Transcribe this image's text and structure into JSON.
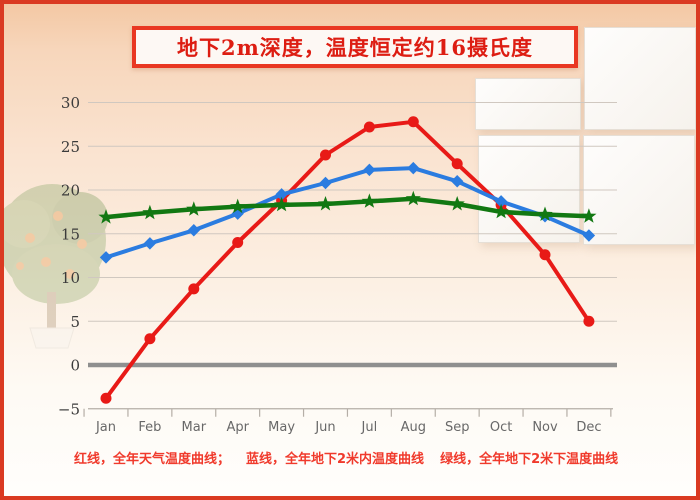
{
  "page": {
    "title": "地下2m深度，温度恒定约16摄氏度"
  },
  "legend": {
    "items": [
      {
        "id": "red",
        "text": "红线，全年天气温度曲线；"
      },
      {
        "id": "blue",
        "text": "蓝线，全年地下2米内温度曲线"
      },
      {
        "id": "green",
        "text": "绿线，全年地下2米下温度曲线"
      }
    ]
  },
  "colors": {
    "page_border": "#da3a22",
    "title_border": "#e93722",
    "title_bg": "#fdf8f4",
    "title_text": "#dd1d12",
    "legend_text": "#f03a2c",
    "axis_text": "#3b3b3b",
    "month_text": "#686868",
    "grid": "#d0c8c0",
    "zero_line": "#8f8f8f",
    "baseline": "#b5aea7"
  },
  "chart_data": {
    "type": "line",
    "title": "地下2m深度，温度恒定约16摄氏度",
    "categories": [
      "Jan",
      "Feb",
      "Mar",
      "Apr",
      "May",
      "Jun",
      "Jul",
      "Aug",
      "Sep",
      "Oct",
      "Nov",
      "Dec"
    ],
    "series": [
      {
        "id": "red",
        "name": "全年天气温度曲线",
        "color": "#e81a17",
        "marker": "circle",
        "width": 4,
        "values": [
          -3.8,
          3,
          8.7,
          14,
          18.8,
          24,
          27.2,
          27.8,
          23,
          18.3,
          12.6,
          5
        ]
      },
      {
        "id": "blue",
        "name": "全年地下2米内温度曲线",
        "color": "#2b7ce0",
        "marker": "diamond",
        "width": 4,
        "values": [
          12.3,
          13.9,
          15.4,
          17.3,
          19.5,
          20.8,
          22.3,
          22.5,
          21,
          18.7,
          17,
          14.8
        ]
      },
      {
        "id": "green",
        "name": "全年地下2米下温度曲线",
        "color": "#127812",
        "marker": "star",
        "width": 4.5,
        "values": [
          16.9,
          17.4,
          17.8,
          18.1,
          18.3,
          18.4,
          18.7,
          19,
          18.4,
          17.5,
          17.2,
          17
        ]
      }
    ],
    "ylim": [
      -5,
      30
    ],
    "yticks": [
      -5,
      0,
      5,
      10,
      15,
      20,
      25,
      30
    ],
    "xlabel": "",
    "ylabel": "",
    "grid": true,
    "zero_line": "thick",
    "legend_position": "bottom"
  }
}
